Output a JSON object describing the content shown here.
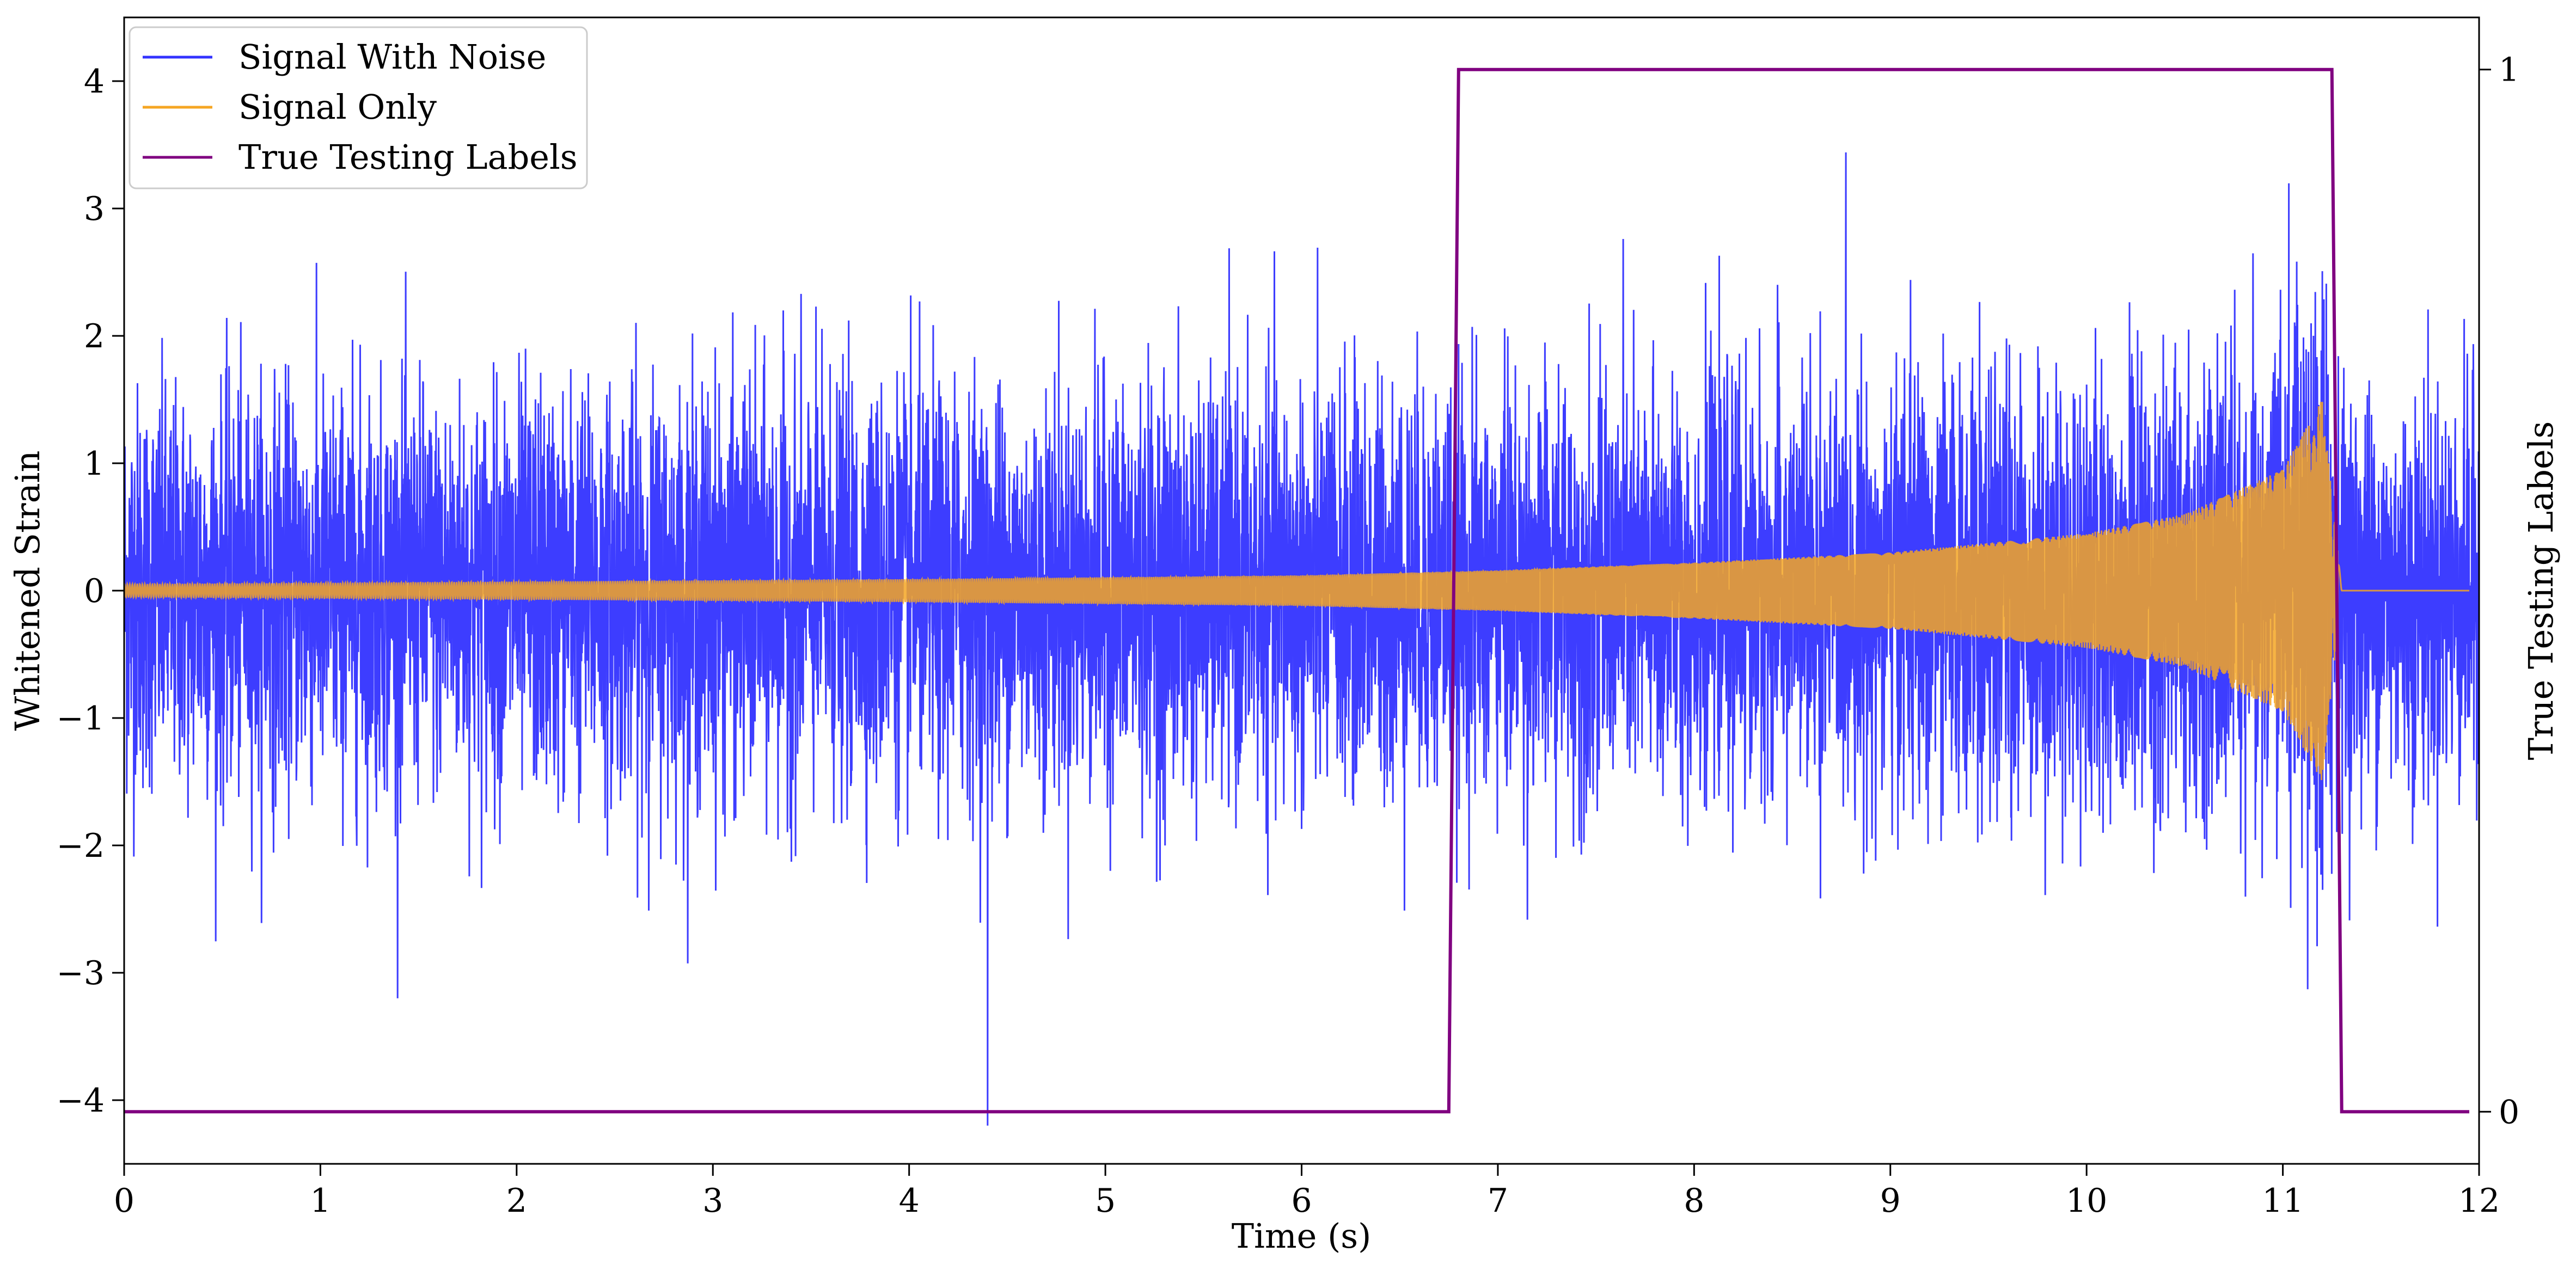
{
  "chart_data": {
    "type": "line",
    "xlabel": "Time (s)",
    "ylabel": "Whitened Strain",
    "y2label": "True Testing Labels",
    "xlim": [
      0,
      12
    ],
    "ylim": [
      -4.5,
      4.5
    ],
    "y2lim": [
      -0.05,
      1.05
    ],
    "x_ticks": [
      "0",
      "1",
      "2",
      "3",
      "4",
      "5",
      "6",
      "7",
      "8",
      "9",
      "10",
      "11",
      "12"
    ],
    "y_ticks": [
      "−4",
      "−3",
      "−2",
      "−1",
      "0",
      "1",
      "2",
      "3",
      "4"
    ],
    "y2_ticks": [
      "0",
      "1"
    ],
    "grid": false,
    "legend_position": "top-left",
    "series": [
      {
        "name": "Signal With Noise",
        "color": "#3333ff",
        "axis": "left",
        "description_values": {
          "x_range": [
            0,
            12
          ],
          "typical_range": [
            -2,
            2
          ],
          "max": 3.8,
          "min": -4.2,
          "min_at_x": 4.4
        }
      },
      {
        "name": "Signal Only",
        "color": "#f5a623",
        "axis": "left",
        "envelope": [
          {
            "x": 0,
            "amp": 0.05
          },
          {
            "x": 2,
            "amp": 0.07
          },
          {
            "x": 4,
            "amp": 0.09
          },
          {
            "x": 6,
            "amp": 0.12
          },
          {
            "x": 7,
            "amp": 0.16
          },
          {
            "x": 8,
            "amp": 0.22
          },
          {
            "x": 9,
            "amp": 0.3
          },
          {
            "x": 10,
            "amp": 0.45
          },
          {
            "x": 10.5,
            "amp": 0.6
          },
          {
            "x": 11,
            "amp": 0.95
          },
          {
            "x": 11.2,
            "amp": 1.5
          },
          {
            "x": 11.3,
            "amp": 0.0
          },
          {
            "x": 12,
            "amp": 0.0
          }
        ]
      },
      {
        "name": "True Testing Labels",
        "color": "#800080",
        "axis": "right",
        "points": [
          {
            "x": 0,
            "y": 0
          },
          {
            "x": 6.75,
            "y": 0
          },
          {
            "x": 6.8,
            "y": 1
          },
          {
            "x": 11.25,
            "y": 1
          },
          {
            "x": 11.3,
            "y": 0
          },
          {
            "x": 11.95,
            "y": 0
          }
        ]
      }
    ]
  }
}
